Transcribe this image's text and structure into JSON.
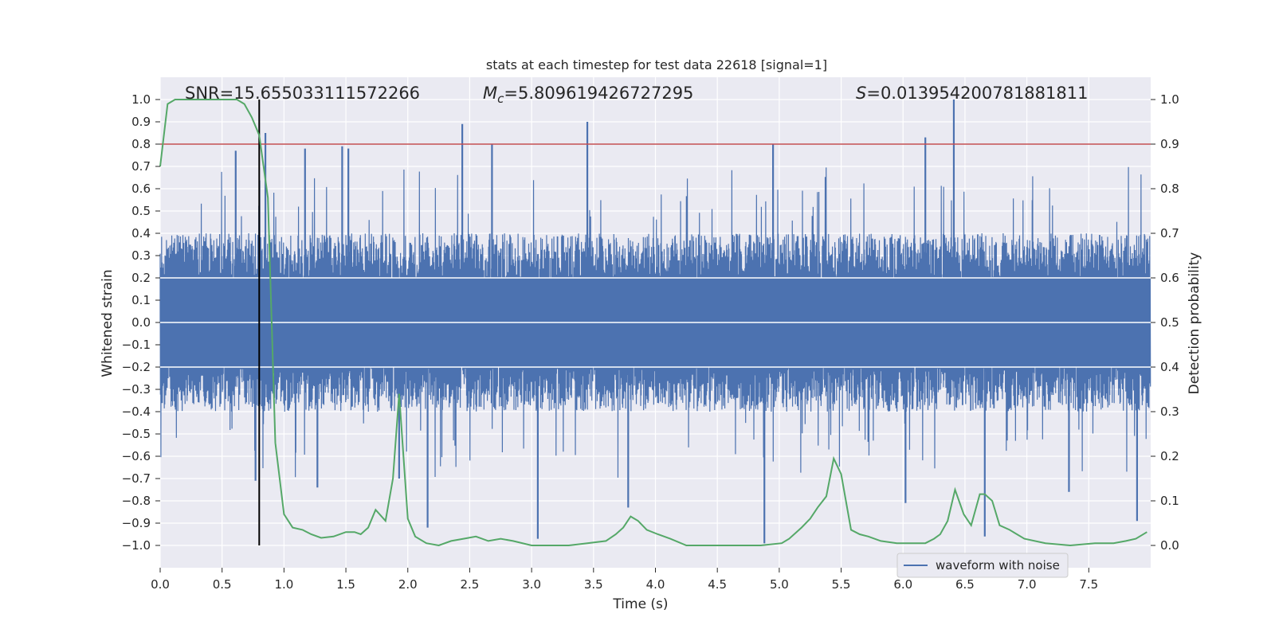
{
  "chart_data": {
    "type": "line",
    "title": "stats at each timestep for test data 22618 [signal=1]",
    "xlabel": "Time (s)",
    "ylabel": "Whitened strain",
    "ylabel_right": "Detection probability",
    "xlim": [
      0.0,
      8.0
    ],
    "ylim": [
      -1.1,
      1.1
    ],
    "ylim_right": [
      -0.05,
      1.05
    ],
    "xticks": [
      "0.0",
      "0.5",
      "1.0",
      "1.5",
      "2.0",
      "2.5",
      "3.0",
      "3.5",
      "4.0",
      "4.5",
      "5.0",
      "5.5",
      "6.0",
      "6.5",
      "7.0",
      "7.5"
    ],
    "yticks": [
      "1.0",
      "0.9",
      "0.8",
      "0.7",
      "0.6",
      "0.5",
      "0.4",
      "0.3",
      "0.2",
      "0.1",
      "0.0",
      "−0.1",
      "−0.2",
      "−0.3",
      "−0.4",
      "−0.5",
      "−0.6",
      "−0.7",
      "−0.8",
      "−0.9",
      "−1.0"
    ],
    "yticks_right": [
      "1.0",
      "0.9",
      "0.8",
      "0.7",
      "0.6",
      "0.5",
      "0.4",
      "0.3",
      "0.2",
      "0.1",
      "0.0"
    ],
    "annotations": {
      "snr": "SNR=15.655033111572266",
      "mc_symbol": "M",
      "mc_sub": "c",
      "mc_value": "=5.809619426727295",
      "s_symbol": "S",
      "s_value": "=0.013954200781881811"
    },
    "threshold": {
      "right_value": 0.9,
      "color": "#c44e52"
    },
    "event_marker": {
      "x": 0.8,
      "y_range": [
        -1.0,
        1.0
      ],
      "color": "#000000"
    },
    "series": [
      {
        "name": "waveform with noise",
        "axis": "left",
        "color": "#4c72b0",
        "peaks": [
          {
            "x": 0.61,
            "y": 0.77
          },
          {
            "x": 0.85,
            "y": 0.85
          },
          {
            "x": 1.17,
            "y": 0.78
          },
          {
            "x": 1.47,
            "y": 0.79
          },
          {
            "x": 2.44,
            "y": 0.89
          },
          {
            "x": 2.68,
            "y": 0.8
          },
          {
            "x": 3.45,
            "y": 0.9
          },
          {
            "x": 4.95,
            "y": 0.8
          },
          {
            "x": 6.18,
            "y": 0.83
          },
          {
            "x": 6.41,
            "y": 1.0
          },
          {
            "x": 1.52,
            "y": 0.78
          }
        ],
        "troughs": [
          {
            "x": 0.77,
            "y": -0.71
          },
          {
            "x": 1.27,
            "y": -0.74
          },
          {
            "x": 1.93,
            "y": -0.7
          },
          {
            "x": 2.16,
            "y": -0.92
          },
          {
            "x": 3.05,
            "y": -0.97
          },
          {
            "x": 3.78,
            "y": -0.83
          },
          {
            "x": 4.88,
            "y": -0.99
          },
          {
            "x": 6.66,
            "y": -0.96
          },
          {
            "x": 7.89,
            "y": -0.89
          },
          {
            "x": 6.02,
            "y": -0.81
          },
          {
            "x": 7.34,
            "y": -0.76
          }
        ],
        "envelope_note": "dense noise roughly between -0.45 and 0.45"
      },
      {
        "name": "Detection probability",
        "axis": "right",
        "color": "#55a868",
        "x": [
          0.0,
          0.06,
          0.12,
          0.2,
          0.3,
          0.4,
          0.5,
          0.55,
          0.62,
          0.68,
          0.74,
          0.8,
          0.87,
          0.93,
          1.0,
          1.07,
          1.15,
          1.22,
          1.3,
          1.4,
          1.5,
          1.57,
          1.62,
          1.68,
          1.74,
          1.82,
          1.88,
          1.93,
          2.0,
          2.06,
          2.15,
          2.25,
          2.35,
          2.45,
          2.55,
          2.65,
          2.75,
          2.85,
          3.0,
          3.15,
          3.3,
          3.45,
          3.6,
          3.68,
          3.74,
          3.8,
          3.86,
          3.93,
          4.02,
          4.12,
          4.25,
          4.45,
          4.65,
          4.85,
          5.02,
          5.08,
          5.18,
          5.25,
          5.31,
          5.38,
          5.44,
          5.5,
          5.58,
          5.65,
          5.72,
          5.82,
          5.95,
          6.1,
          6.18,
          6.25,
          6.3,
          6.36,
          6.42,
          6.49,
          6.55,
          6.62,
          6.66,
          6.72,
          6.78,
          6.86,
          6.98,
          7.15,
          7.35,
          7.55,
          7.7,
          7.8,
          7.88,
          7.97
        ],
        "values": [
          0.85,
          0.99,
          1.0,
          1.0,
          1.0,
          1.0,
          1.0,
          1.0,
          1.0,
          0.99,
          0.96,
          0.92,
          0.78,
          0.23,
          0.07,
          0.04,
          0.035,
          0.025,
          0.017,
          0.02,
          0.03,
          0.03,
          0.025,
          0.04,
          0.08,
          0.055,
          0.15,
          0.34,
          0.06,
          0.02,
          0.005,
          0.0,
          0.01,
          0.015,
          0.02,
          0.01,
          0.015,
          0.01,
          0.0,
          0.0,
          0.0,
          0.005,
          0.01,
          0.025,
          0.04,
          0.065,
          0.055,
          0.035,
          0.025,
          0.015,
          0.0,
          0.0,
          0.0,
          0.0,
          0.005,
          0.015,
          0.04,
          0.06,
          0.085,
          0.11,
          0.195,
          0.16,
          0.035,
          0.025,
          0.02,
          0.01,
          0.005,
          0.005,
          0.005,
          0.015,
          0.025,
          0.055,
          0.125,
          0.07,
          0.045,
          0.115,
          0.115,
          0.1,
          0.045,
          0.035,
          0.015,
          0.005,
          0.0,
          0.005,
          0.005,
          0.01,
          0.015,
          0.03
        ]
      }
    ],
    "legend": {
      "label": "waveform with noise",
      "placement": "lower-right"
    }
  }
}
